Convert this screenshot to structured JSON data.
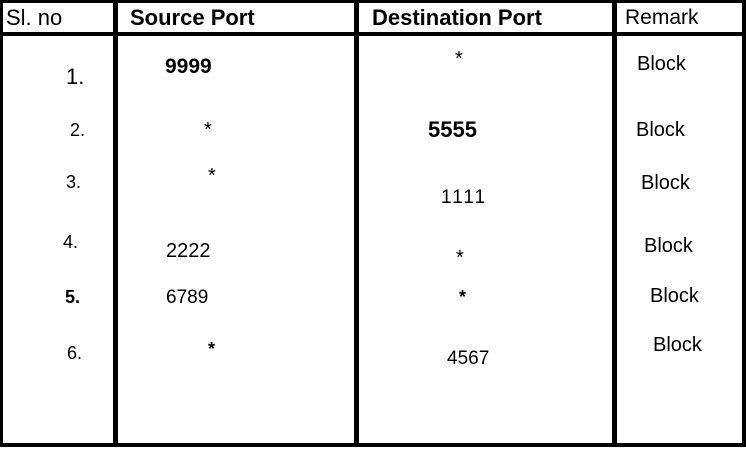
{
  "table": {
    "headers": {
      "sl_no": "Sl. no",
      "source_port": "Source Port",
      "destination_port": "Destination Port",
      "remark": "Remark"
    },
    "rows": [
      {
        "sl_no": "1.",
        "source_port": "9999",
        "destination_port": "*",
        "remark": "Block"
      },
      {
        "sl_no": "2.",
        "source_port": "*",
        "destination_port": "5555",
        "remark": "Block"
      },
      {
        "sl_no": "3.",
        "source_port": "*",
        "destination_port": "1111",
        "remark": "Block"
      },
      {
        "sl_no": "4.",
        "source_port": "2222",
        "destination_port": "*",
        "remark": "Block"
      },
      {
        "sl_no": "5.",
        "source_port": "6789",
        "destination_port": "*",
        "remark": "Block"
      },
      {
        "sl_no": "6.",
        "source_port": "*",
        "destination_port": "4567",
        "remark": "Block"
      }
    ]
  }
}
